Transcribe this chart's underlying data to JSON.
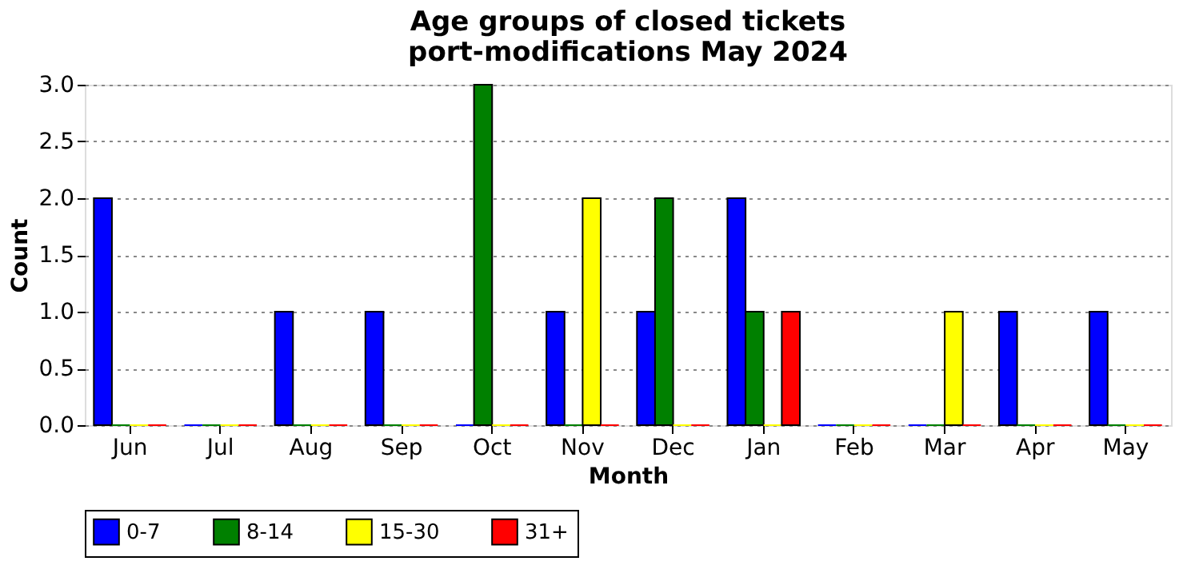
{
  "chart_data": {
    "type": "bar",
    "title": "Age groups of closed tickets\nport-modifications May 2024",
    "xlabel": "Month",
    "ylabel": "Count",
    "categories": [
      "Jun",
      "Jul",
      "Aug",
      "Sep",
      "Oct",
      "Nov",
      "Dec",
      "Jan",
      "Feb",
      "Mar",
      "Apr",
      "May"
    ],
    "series": [
      {
        "name": "0-7",
        "color": "#0000ff",
        "values": [
          2,
          0,
          1,
          1,
          0,
          1,
          1,
          2,
          0,
          0,
          1,
          1
        ]
      },
      {
        "name": "8-14",
        "color": "#008000",
        "values": [
          0,
          0,
          0,
          0,
          3,
          0,
          2,
          1,
          0,
          0,
          0,
          0
        ]
      },
      {
        "name": "15-30",
        "color": "#ffff00",
        "values": [
          0,
          0,
          0,
          0,
          0,
          2,
          0,
          0,
          0,
          1,
          0,
          0
        ]
      },
      {
        "name": "31+",
        "color": "#ff0000",
        "values": [
          0,
          0,
          0,
          0,
          0,
          0,
          0,
          1,
          0,
          0,
          0,
          0
        ]
      }
    ],
    "ylim": [
      0,
      3
    ],
    "yticks": [
      {
        "value": 0,
        "label": "0.0"
      },
      {
        "value": 0.5,
        "label": "0.5"
      },
      {
        "value": 1,
        "label": "1.0"
      },
      {
        "value": 1.5,
        "label": "1.5"
      },
      {
        "value": 2,
        "label": "2.0"
      },
      {
        "value": 2.5,
        "label": "2.5"
      },
      {
        "value": 3,
        "label": "3.0"
      }
    ],
    "grid": "y",
    "legend": "bottom"
  }
}
